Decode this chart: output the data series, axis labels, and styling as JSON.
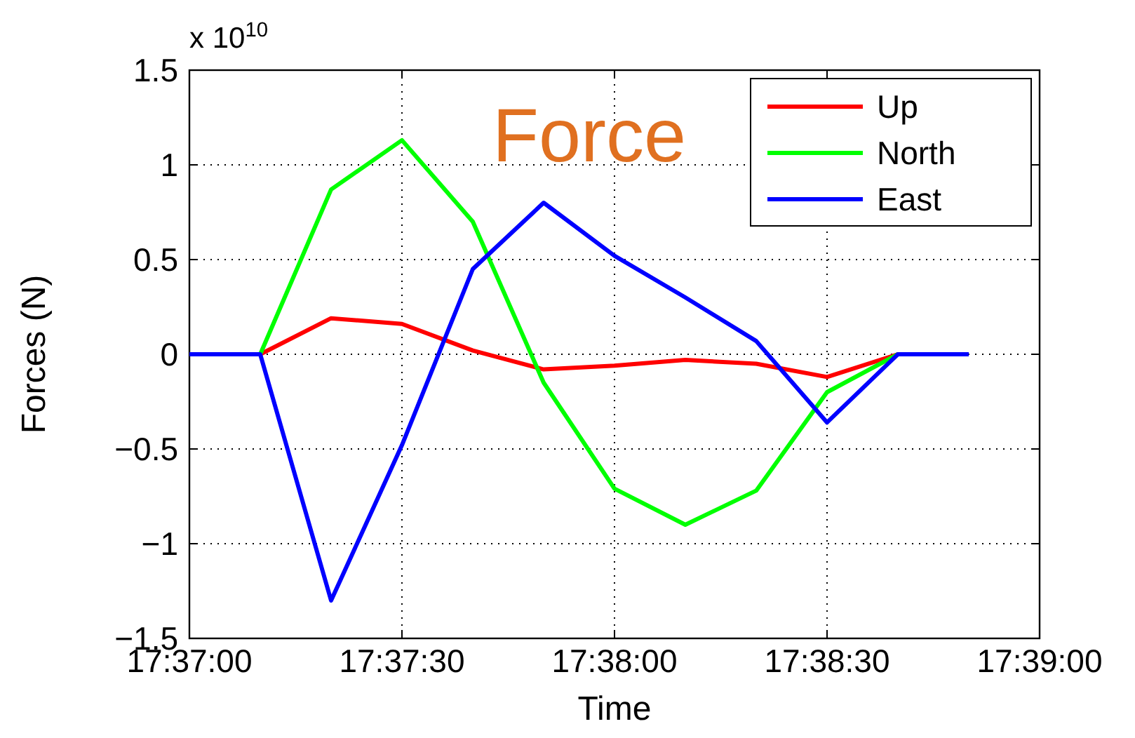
{
  "chart_data": {
    "type": "line",
    "title": "Force",
    "xlabel": "Time",
    "ylabel": "Forces (N)",
    "annotations": [
      "x 10$^{10}$"
    ],
    "x": [
      17.616667,
      17.619444,
      17.622222,
      17.625,
      17.627778,
      17.630556,
      17.633333,
      17.636111,
      17.638889,
      17.641667,
      17.644444,
      17.647222
    ],
    "series": [
      {
        "name": "Up",
        "color": "#ff0000",
        "values": [
          0,
          0,
          0.19,
          0.16,
          0.02,
          -0.08,
          -0.06,
          -0.03,
          -0.05,
          -0.12,
          0,
          0
        ]
      },
      {
        "name": "North",
        "color": "#00ff00",
        "values": [
          0,
          0,
          0.87,
          1.13,
          0.7,
          -0.15,
          -0.71,
          -0.9,
          -0.72,
          -0.2,
          0,
          0
        ]
      },
      {
        "name": "East",
        "color": "#0000ff",
        "values": [
          0,
          0,
          -1.3,
          -0.48,
          0.45,
          0.8,
          0.52,
          0.3,
          0.07,
          -0.36,
          0,
          0
        ]
      }
    ],
    "xlim": [
      17.616667,
      17.65
    ],
    "xticks": [
      {
        "value": 17.616667,
        "label": "17:37:00"
      },
      {
        "value": 17.625,
        "label": "17:37:30"
      },
      {
        "value": 17.633333,
        "label": "17:38:00"
      },
      {
        "value": 17.641667,
        "label": "17:38:30"
      },
      {
        "value": 17.65,
        "label": "17:39:00"
      }
    ],
    "ylim": [
      -1.5,
      1.5
    ],
    "yticks": [
      -1.5,
      -1,
      -0.5,
      0,
      0.5,
      1,
      1.5
    ],
    "grid": true,
    "legend": "top right",
    "line_style": "solid",
    "marker": "none"
  }
}
